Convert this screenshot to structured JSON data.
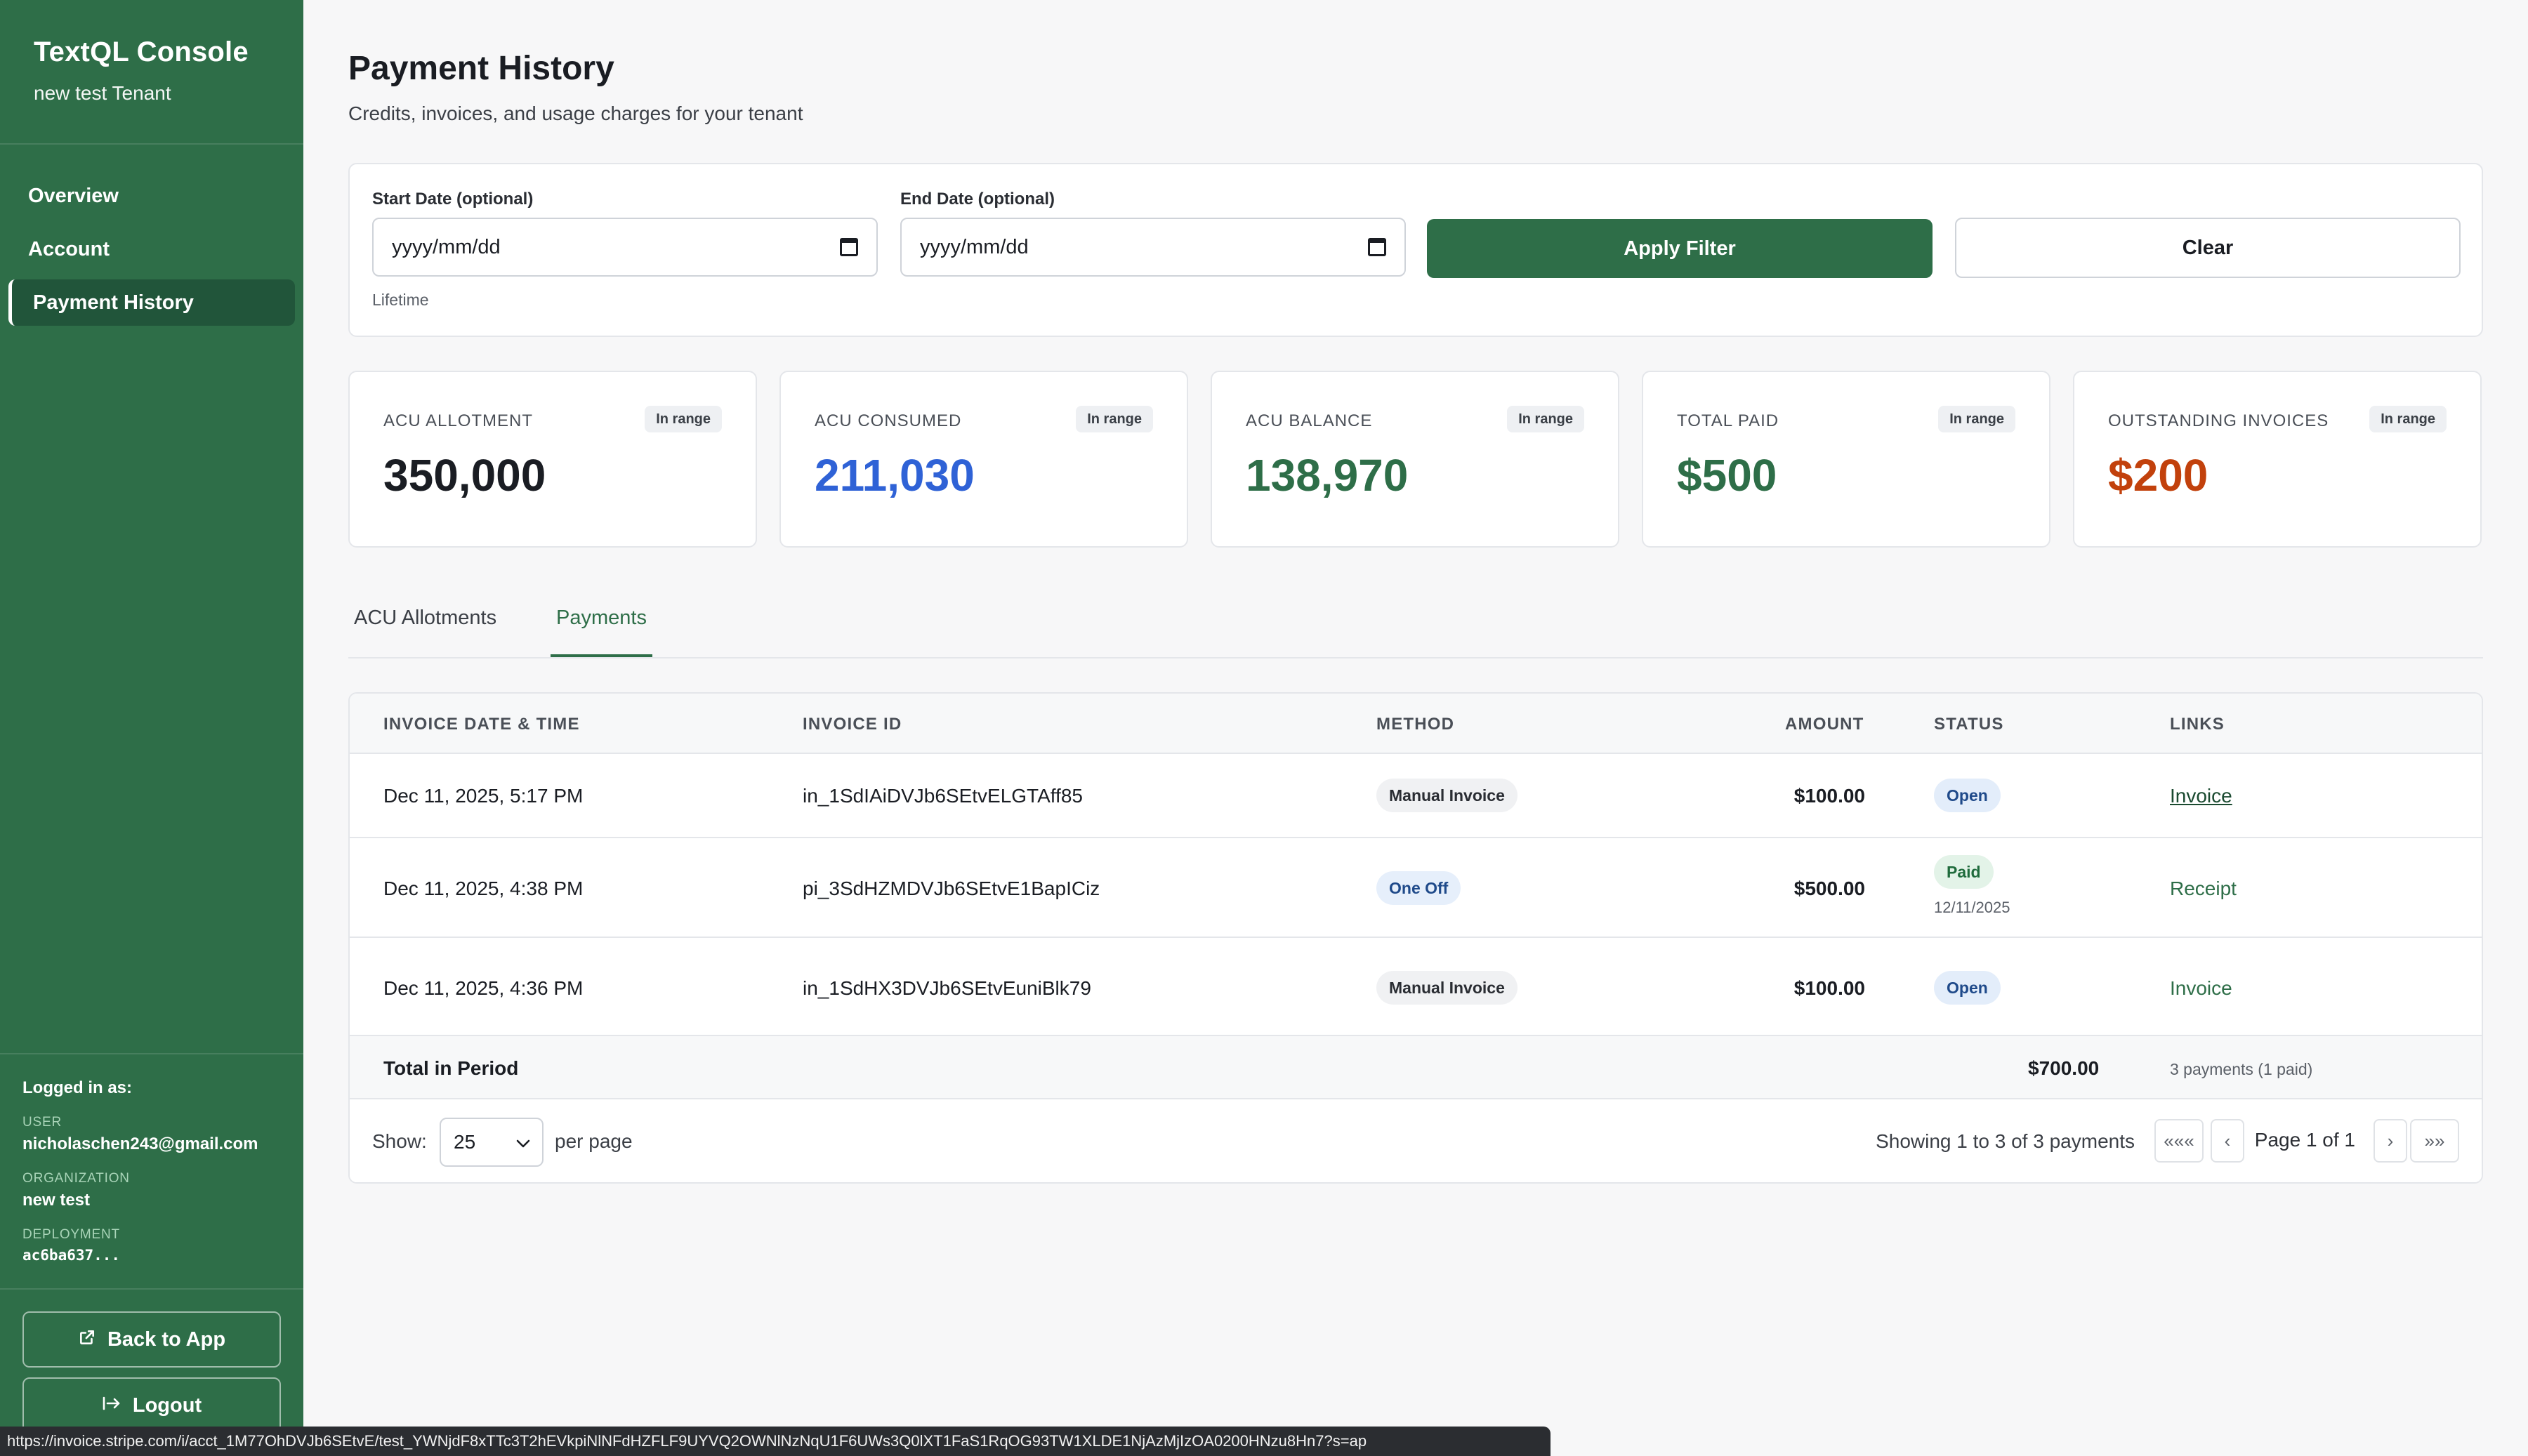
{
  "sidebar": {
    "title": "TextQL Console",
    "subtitle": "new test Tenant",
    "nav": [
      {
        "label": "Overview"
      },
      {
        "label": "Account"
      },
      {
        "label": "Payment History"
      }
    ],
    "footer": {
      "logged_in_label": "Logged in as:",
      "user_label": "USER",
      "user_value": "nicholaschen243@gmail.com",
      "org_label": "ORGANIZATION",
      "org_value": "new test",
      "deployment_label": "DEPLOYMENT",
      "deployment_value": "ac6ba637..."
    },
    "back_to_app": "Back to App",
    "logout": "Logout"
  },
  "page": {
    "title": "Payment History",
    "subtitle": "Credits, invoices, and usage charges for your tenant"
  },
  "filter": {
    "start_label": "Start Date (optional)",
    "start_value": "yyyy/mm/dd",
    "end_label": "End Date (optional)",
    "end_value": "yyyy/mm/dd",
    "apply_label": "Apply Filter",
    "clear_label": "Clear",
    "range_note": "Lifetime"
  },
  "stats": [
    {
      "label": "ACU ALLOTMENT",
      "badge": "In range",
      "value": "350,000",
      "color": "#1a1d23"
    },
    {
      "label": "ACU CONSUMED",
      "badge": "In range",
      "value": "211,030",
      "color": "#2f62d6"
    },
    {
      "label": "ACU BALANCE",
      "badge": "In range",
      "value": "138,970",
      "color": "#2e6e48"
    },
    {
      "label": "TOTAL PAID",
      "badge": "In range",
      "value": "$500",
      "color": "#2e6e48"
    },
    {
      "label": "OUTSTANDING INVOICES",
      "badge": "In range",
      "value": "$200",
      "color": "#c2410c"
    }
  ],
  "tabs": [
    {
      "label": "ACU Allotments",
      "active": false
    },
    {
      "label": "Payments",
      "active": true
    }
  ],
  "table": {
    "headers": [
      "INVOICE DATE & TIME",
      "INVOICE ID",
      "METHOD",
      "AMOUNT",
      "STATUS",
      "LINKS"
    ],
    "rows": [
      {
        "date": "Dec 11, 2025, 5:17 PM",
        "id": "in_1SdIAiDVJb6SEtvELGTAff85",
        "method": "Manual Invoice",
        "amount": "$100.00",
        "status": "Open",
        "status_date": "",
        "link": "Invoice"
      },
      {
        "date": "Dec 11, 2025, 4:38 PM",
        "id": "pi_3SdHZMDVJb6SEtvE1BapICiz",
        "method": "One Off",
        "amount": "$500.00",
        "status": "Paid",
        "status_date": "12/11/2025",
        "link": "Receipt"
      },
      {
        "date": "Dec 11, 2025, 4:36 PM",
        "id": "in_1SdHX3DVJb6SEtvEuniBlk79",
        "method": "Manual Invoice",
        "amount": "$100.00",
        "status": "Open",
        "status_date": "",
        "link": "Invoice"
      }
    ],
    "total_label": "Total in Period",
    "total_amount": "$700.00",
    "total_note": "3 payments (1 paid)"
  },
  "pagination": {
    "show_label": "Show:",
    "per_page_value": "25",
    "per_page_label": "per page",
    "showing_text": "Showing 1 to 3 of 3 payments",
    "first": "«««",
    "prev": "‹",
    "page_text": "Page 1 of 1",
    "next": "›",
    "last": "»»"
  },
  "status_bar_url": "https://invoice.stripe.com/i/acct_1M77OhDVJb6SEtvE/test_YWNjdF8xTTc3T2hEVkpiNlNFdHZFLF9UYVQ2OWNlNzNqU1F6UWs3Q0lXT1FaS1RqOG93TW1XLDE1NjAzMjIzOA0200HNzu8Hn7?s=ap"
}
